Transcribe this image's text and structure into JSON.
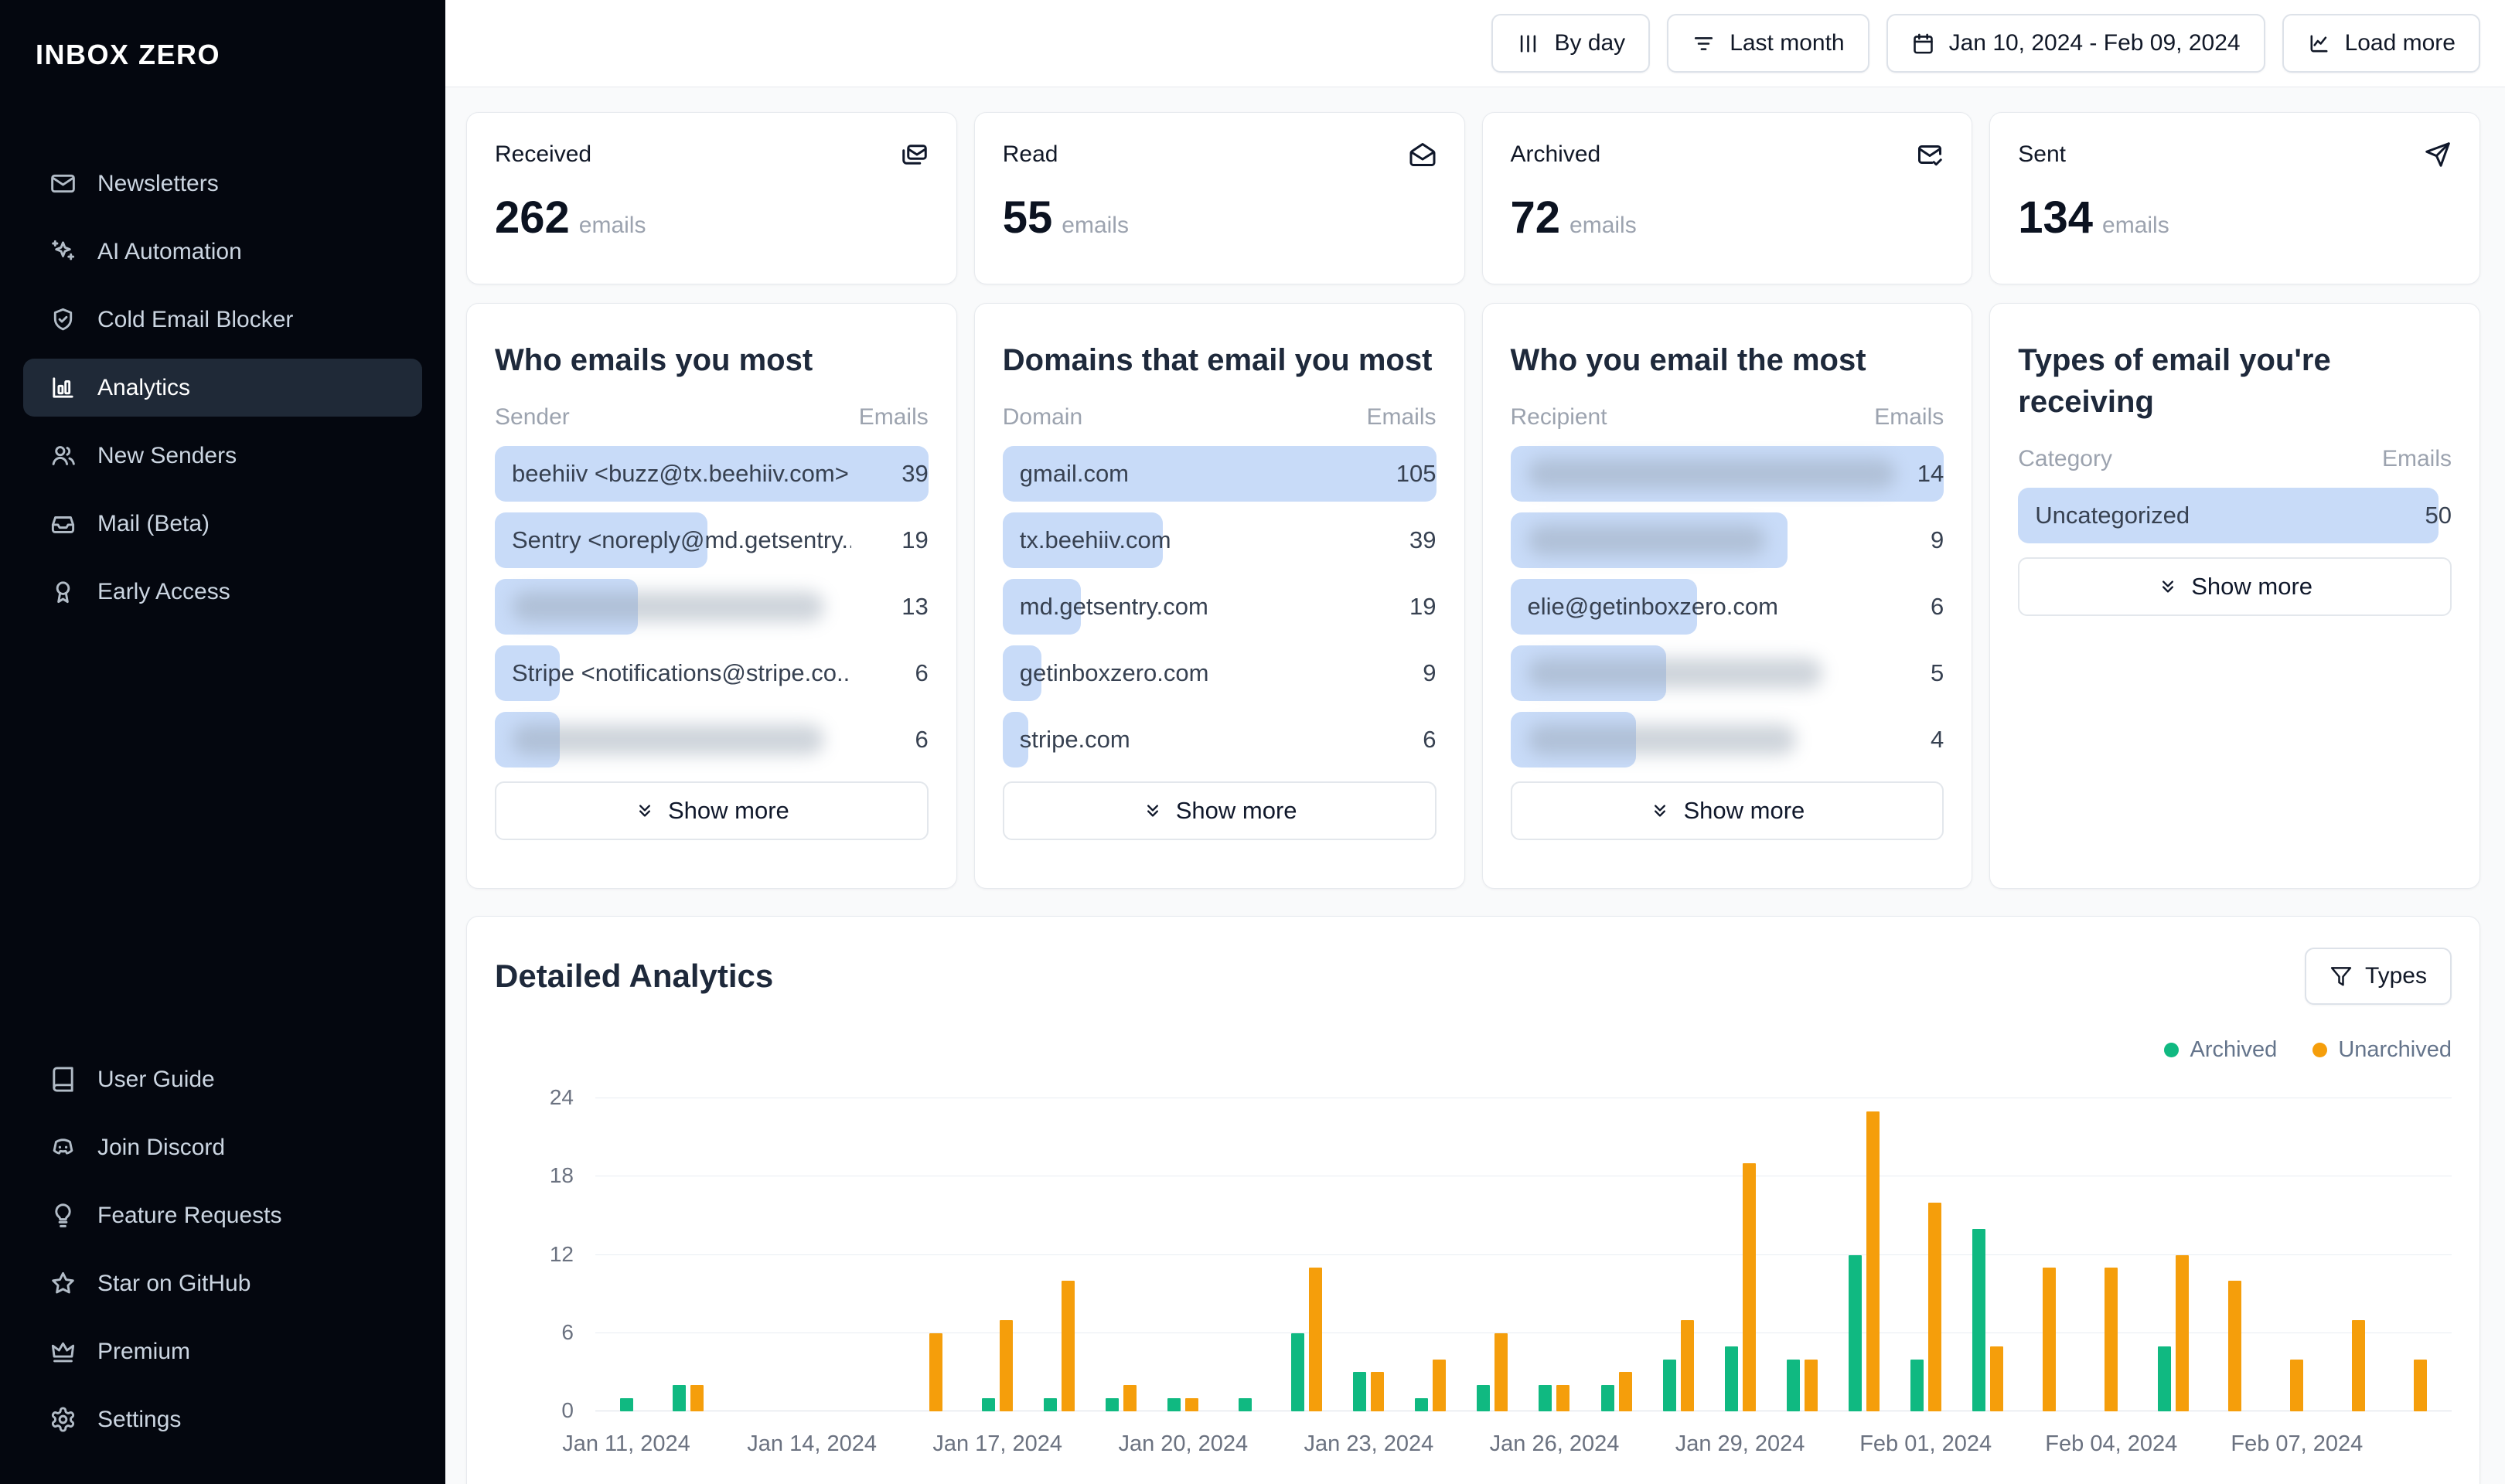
{
  "app": {
    "background": "#f9fafb",
    "accent_blue": "#c8dbf8"
  },
  "sidebar": {
    "logo": "INBOX ZERO",
    "items": [
      {
        "id": "newsletters",
        "label": "Newsletters",
        "icon": "mail",
        "active": false
      },
      {
        "id": "ai-automation",
        "label": "AI Automation",
        "icon": "sparkles",
        "active": false
      },
      {
        "id": "cold-email-blocker",
        "label": "Cold Email Blocker",
        "icon": "shield-check",
        "active": false
      },
      {
        "id": "analytics",
        "label": "Analytics",
        "icon": "chart-column",
        "active": true
      },
      {
        "id": "new-senders",
        "label": "New Senders",
        "icon": "users",
        "active": false
      },
      {
        "id": "mail-beta",
        "label": "Mail (Beta)",
        "icon": "inbox",
        "active": false
      },
      {
        "id": "early-access",
        "label": "Early Access",
        "icon": "ribbon",
        "active": false
      }
    ],
    "footer_items": [
      {
        "id": "user-guide",
        "label": "User Guide",
        "icon": "book"
      },
      {
        "id": "join-discord",
        "label": "Join Discord",
        "icon": "discord"
      },
      {
        "id": "feature-requests",
        "label": "Feature Requests",
        "icon": "lightbulb"
      },
      {
        "id": "star-on-github",
        "label": "Star on GitHub",
        "icon": "star"
      },
      {
        "id": "premium",
        "label": "Premium",
        "icon": "crown"
      },
      {
        "id": "settings",
        "label": "Settings",
        "icon": "settings"
      }
    ]
  },
  "topbar": {
    "buttons": [
      {
        "id": "by-day",
        "label": "By day",
        "icon": "columns"
      },
      {
        "id": "last-month",
        "label": "Last month",
        "icon": "list-filter"
      },
      {
        "id": "date-range",
        "label": "Jan 10, 2024 - Feb 09, 2024",
        "icon": "calendar"
      },
      {
        "id": "load-more",
        "label": "Load more",
        "icon": "chart-line"
      }
    ]
  },
  "stats": [
    {
      "label": "Received",
      "value": "262",
      "unit": "emails",
      "icon": "mails"
    },
    {
      "label": "Read",
      "value": "55",
      "unit": "emails",
      "icon": "mail-open"
    },
    {
      "label": "Archived",
      "value": "72",
      "unit": "emails",
      "icon": "mail-check"
    },
    {
      "label": "Sent",
      "value": "134",
      "unit": "emails",
      "icon": "send"
    }
  ],
  "lists": [
    {
      "title": "Who emails you most",
      "col_left": "Sender",
      "col_right": "Emails",
      "show_more": "Show more",
      "rows": [
        {
          "label": "beehiiv <buzz@tx.beehiiv.com>",
          "value": "39",
          "bar_pct": 100,
          "blurred": false
        },
        {
          "label": "Sentry <noreply@md.getsentry....",
          "value": "19",
          "bar_pct": 49,
          "blurred": false
        },
        {
          "label": "",
          "value": "13",
          "bar_pct": 33,
          "blurred": true,
          "blur_pct": 72
        },
        {
          "label": "Stripe <notifications@stripe.co...",
          "value": "6",
          "bar_pct": 15,
          "blurred": false
        },
        {
          "label": "",
          "value": "6",
          "bar_pct": 15,
          "blurred": true,
          "blur_pct": 72
        }
      ]
    },
    {
      "title": "Domains that email you most",
      "col_left": "Domain",
      "col_right": "Emails",
      "show_more": "Show more",
      "rows": [
        {
          "label": "gmail.com",
          "value": "105",
          "bar_pct": 100,
          "blurred": false
        },
        {
          "label": "tx.beehiiv.com",
          "value": "39",
          "bar_pct": 37,
          "blurred": false
        },
        {
          "label": "md.getsentry.com",
          "value": "19",
          "bar_pct": 18,
          "blurred": false
        },
        {
          "label": "getinboxzero.com",
          "value": "9",
          "bar_pct": 9,
          "blurred": false
        },
        {
          "label": "stripe.com",
          "value": "6",
          "bar_pct": 6,
          "blurred": false
        }
      ]
    },
    {
      "title": "Who you email the most",
      "col_left": "Recipient",
      "col_right": "Emails",
      "show_more": "Show more",
      "rows": [
        {
          "label": "",
          "value": "14",
          "bar_pct": 100,
          "blurred": true,
          "blur_pct": 85
        },
        {
          "label": "",
          "value": "9",
          "bar_pct": 64,
          "blurred": true,
          "blur_pct": 55
        },
        {
          "label": "elie@getinboxzero.com",
          "value": "6",
          "bar_pct": 43,
          "blurred": false
        },
        {
          "label": "",
          "value": "5",
          "bar_pct": 36,
          "blurred": true,
          "blur_pct": 68
        },
        {
          "label": "",
          "value": "4",
          "bar_pct": 29,
          "blurred": true,
          "blur_pct": 62
        }
      ]
    },
    {
      "title": "Types of email you're receiving",
      "col_left": "Category",
      "col_right": "Emails",
      "show_more": "Show more",
      "rows": [
        {
          "label": "Uncategorized",
          "value": "50",
          "bar_pct": 97,
          "blurred": false
        }
      ]
    }
  ],
  "detailed": {
    "title": "Detailed Analytics",
    "types_button": "Types",
    "legend": [
      {
        "label": "Archived",
        "color": "#10b981"
      },
      {
        "label": "Unarchived",
        "color": "#f59e0b"
      }
    ]
  },
  "chart_data": {
    "type": "bar",
    "title": "Detailed Analytics",
    "x": [
      "Jan 11, 2024",
      "Jan 12, 2024",
      "Jan 13, 2024",
      "Jan 14, 2024",
      "Jan 15, 2024",
      "Jan 16, 2024",
      "Jan 17, 2024",
      "Jan 18, 2024",
      "Jan 19, 2024",
      "Jan 20, 2024",
      "Jan 21, 2024",
      "Jan 22, 2024",
      "Jan 23, 2024",
      "Jan 24, 2024",
      "Jan 25, 2024",
      "Jan 26, 2024",
      "Jan 27, 2024",
      "Jan 28, 2024",
      "Jan 29, 2024",
      "Jan 30, 2024",
      "Jan 31, 2024",
      "Feb 01, 2024",
      "Feb 02, 2024",
      "Feb 03, 2024",
      "Feb 04, 2024",
      "Feb 05, 2024",
      "Feb 06, 2024",
      "Feb 07, 2024",
      "Feb 08, 2024",
      "Feb 09, 2024"
    ],
    "series": [
      {
        "name": "Archived",
        "color": "#10b981",
        "values": [
          1,
          2,
          0,
          0,
          0,
          0,
          1,
          1,
          1,
          1,
          1,
          6,
          3,
          1,
          2,
          2,
          2,
          4,
          5,
          4,
          12,
          4,
          14,
          0,
          0,
          5,
          0,
          0,
          0,
          0
        ]
      },
      {
        "name": "Unarchived",
        "color": "#f59e0b",
        "values": [
          0,
          2,
          0,
          0,
          0,
          6,
          7,
          10,
          2,
          1,
          0,
          11,
          3,
          4,
          6,
          2,
          3,
          7,
          19,
          4,
          23,
          16,
          5,
          11,
          11,
          12,
          10,
          4,
          7,
          4
        ]
      }
    ],
    "ylim": [
      0,
      24
    ],
    "yticks": [
      0,
      6,
      12,
      18,
      24
    ],
    "x_tick_every": 3,
    "grid": true,
    "legend_position": "top-right"
  }
}
